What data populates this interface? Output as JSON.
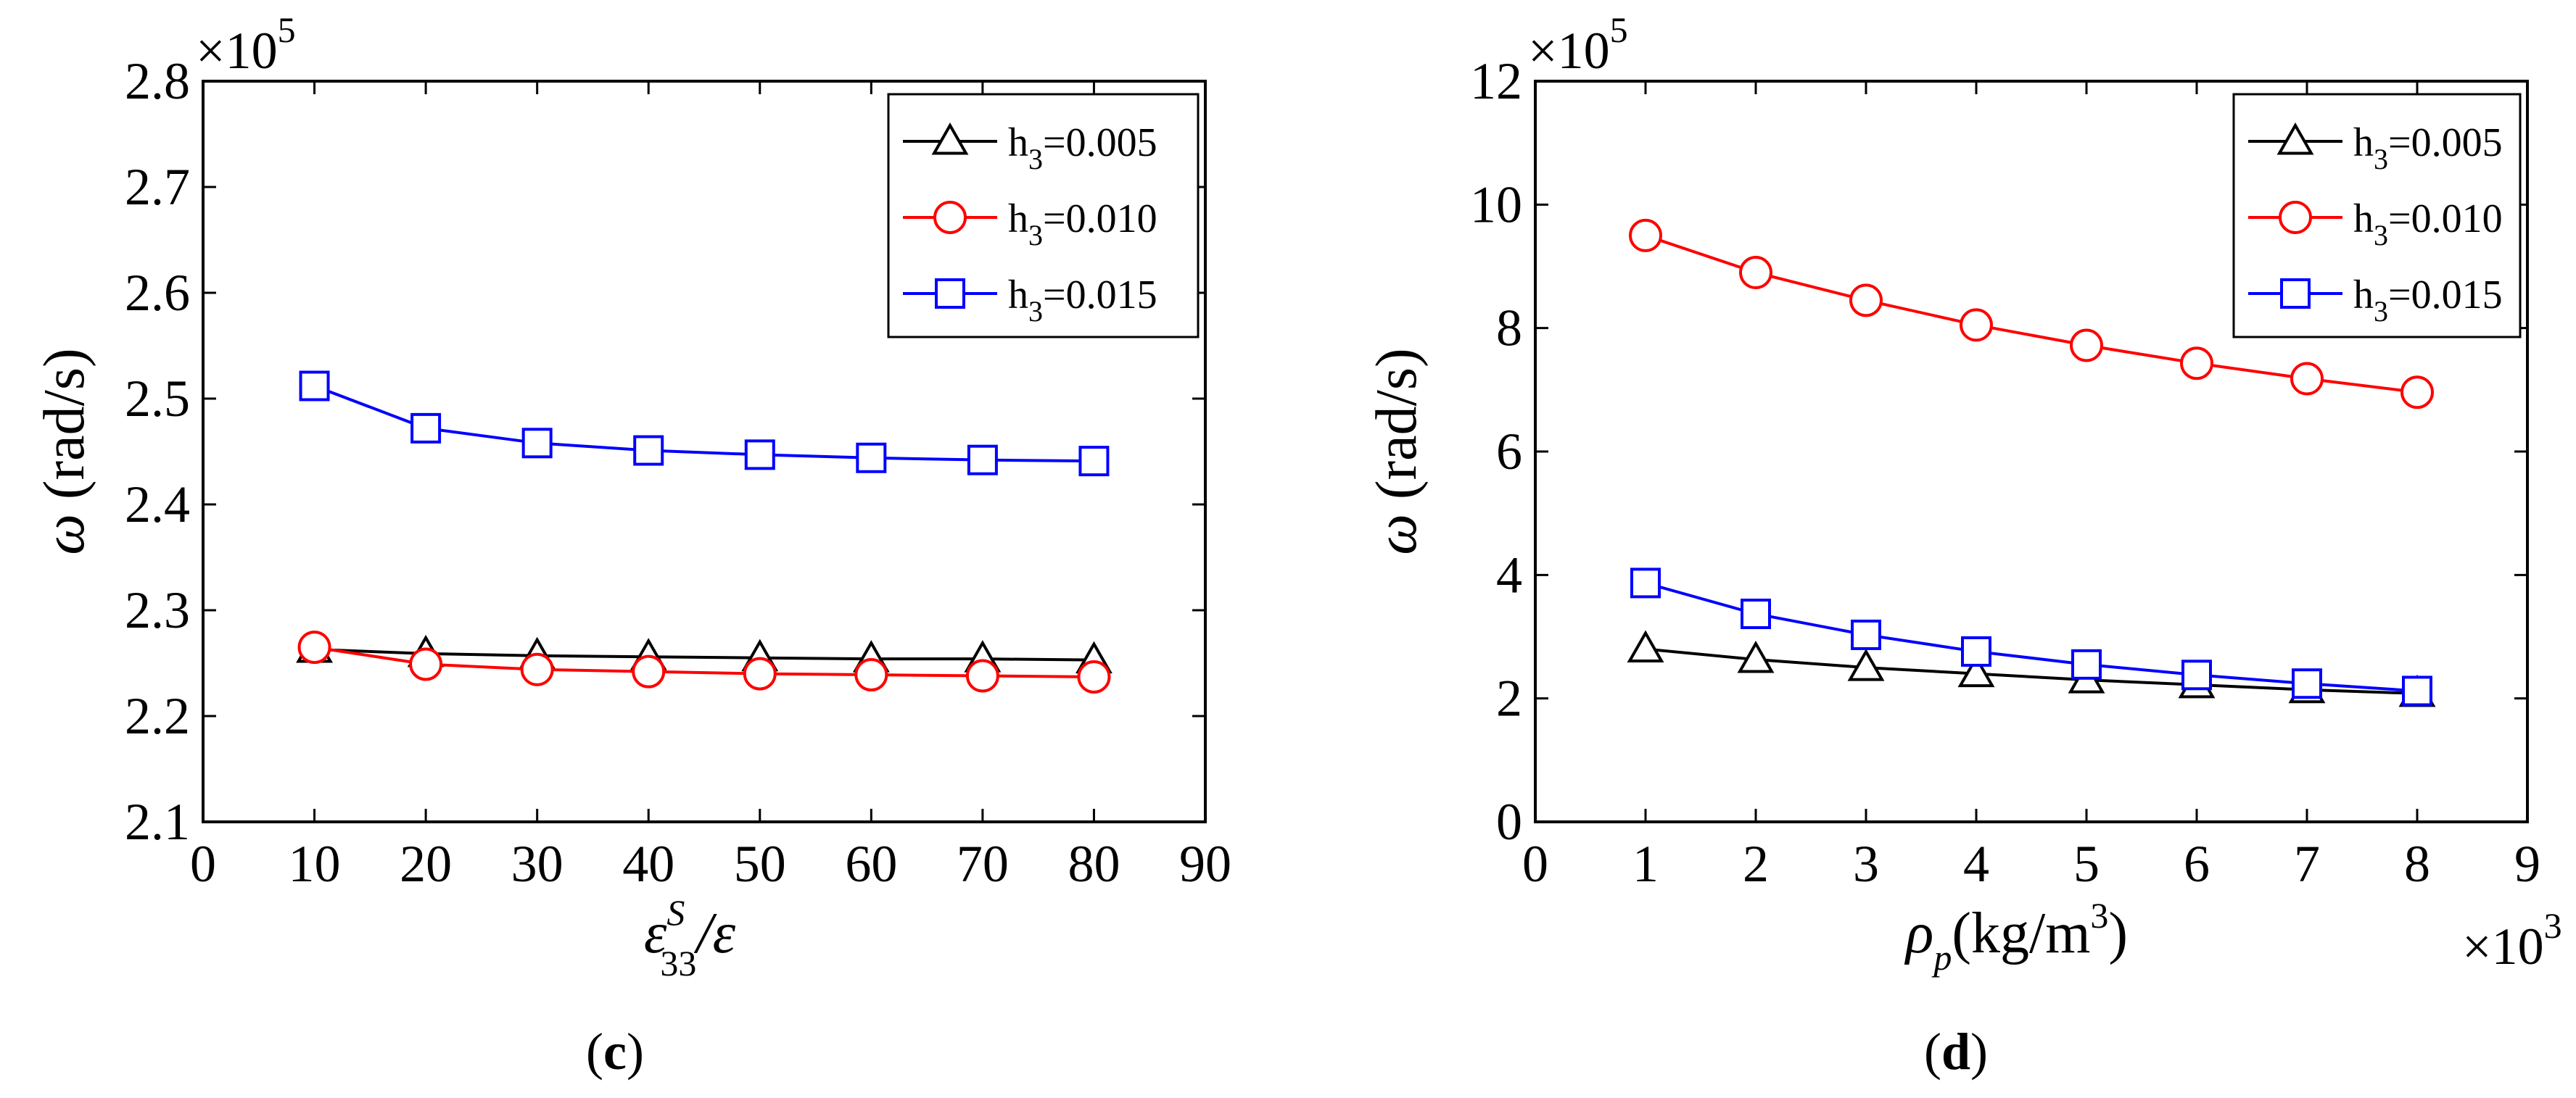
{
  "chart_data": [
    {
      "type": "line",
      "panel": "c",
      "caption_open": "(",
      "caption_letter": "c",
      "caption_close": ")",
      "x": [
        10,
        20,
        30,
        40,
        50,
        60,
        70,
        80
      ],
      "xlim": [
        0,
        90
      ],
      "ylim": [
        2.1,
        2.8
      ],
      "xticks": [
        0,
        10,
        20,
        30,
        40,
        50,
        60,
        70,
        80,
        90
      ],
      "yticks": [
        2.1,
        2.2,
        2.3,
        2.4,
        2.5,
        2.6,
        2.7,
        2.8
      ],
      "xtick_labels": [
        "0",
        "10",
        "20",
        "30",
        "40",
        "50",
        "60",
        "70",
        "80",
        "90"
      ],
      "ytick_labels": [
        "2.1",
        "2.2",
        "2.3",
        "2.4",
        "2.5",
        "2.6",
        "2.7",
        "2.8"
      ],
      "y_multiplier": "×10",
      "y_multiplier_exp": "5",
      "xlabel": {
        "sym": "ε",
        "sup": "S",
        "sub": "33",
        "rest": "/ε"
      },
      "ylabel": {
        "sym": "ω",
        "unit": "(rad/s)"
      },
      "legend_position": "top-right",
      "grid": false,
      "series": [
        {
          "name": "h",
          "name_sub": "3",
          "name_rest": "=0.005",
          "color": "#000000",
          "marker": "triangle",
          "values": [
            2.263,
            2.259,
            2.257,
            2.256,
            2.255,
            2.254,
            2.254,
            2.253
          ]
        },
        {
          "name": "h",
          "name_sub": "3",
          "name_rest": "=0.010",
          "color": "#ff0000",
          "marker": "circle",
          "values": [
            2.265,
            2.249,
            2.244,
            2.242,
            2.24,
            2.239,
            2.238,
            2.237
          ]
        },
        {
          "name": "h",
          "name_sub": "3",
          "name_rest": "=0.015",
          "color": "#0000ff",
          "marker": "square",
          "values": [
            2.512,
            2.472,
            2.458,
            2.451,
            2.447,
            2.444,
            2.442,
            2.441
          ]
        }
      ]
    },
    {
      "type": "line",
      "panel": "d",
      "caption_open": "(",
      "caption_letter": "d",
      "caption_close": ")",
      "x": [
        1,
        2,
        3,
        4,
        5,
        6,
        7,
        8
      ],
      "xlim": [
        0,
        9
      ],
      "ylim": [
        0,
        12
      ],
      "xticks": [
        0,
        1,
        2,
        3,
        4,
        5,
        6,
        7,
        8,
        9
      ],
      "yticks": [
        0,
        2,
        4,
        6,
        8,
        10,
        12
      ],
      "xtick_labels": [
        "0",
        "1",
        "2",
        "3",
        "4",
        "5",
        "6",
        "7",
        "8",
        "9"
      ],
      "ytick_labels": [
        "0",
        "2",
        "4",
        "6",
        "8",
        "10",
        "12"
      ],
      "y_multiplier": "×10",
      "y_multiplier_exp": "5",
      "x_multiplier": "×10",
      "x_multiplier_exp": "3",
      "xlabel": {
        "sym": "ρ",
        "sub": "p",
        "unit": "(kg/m",
        "unit_sup": "3",
        "unit_close": ")"
      },
      "ylabel": {
        "sym": "ω",
        "unit": "(rad/s)"
      },
      "legend_position": "top-right",
      "grid": false,
      "series": [
        {
          "name": "h",
          "name_sub": "3",
          "name_rest": "=0.005",
          "color": "#000000",
          "marker": "triangle",
          "values": [
            2.8,
            2.63,
            2.5,
            2.4,
            2.3,
            2.22,
            2.14,
            2.08
          ]
        },
        {
          "name": "h",
          "name_sub": "3",
          "name_rest": "=0.010",
          "color": "#ff0000",
          "marker": "circle",
          "values": [
            9.5,
            8.9,
            8.45,
            8.05,
            7.72,
            7.43,
            7.18,
            6.96
          ]
        },
        {
          "name": "h",
          "name_sub": "3",
          "name_rest": "=0.015",
          "color": "#0000ff",
          "marker": "square",
          "values": [
            3.87,
            3.37,
            3.03,
            2.76,
            2.55,
            2.38,
            2.24,
            2.12
          ]
        }
      ]
    }
  ]
}
